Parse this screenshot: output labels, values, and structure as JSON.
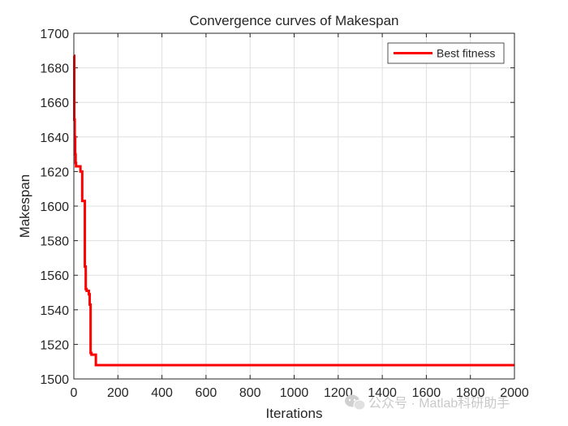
{
  "chart_data": {
    "type": "line",
    "title": "Convergence curves of Makespan",
    "xlabel": "Iterations",
    "ylabel": "Makespan",
    "xlim": [
      0,
      2000
    ],
    "ylim": [
      1500,
      1700
    ],
    "xticks": [
      0,
      200,
      400,
      600,
      800,
      1000,
      1200,
      1400,
      1600,
      1800,
      2000
    ],
    "yticks": [
      1500,
      1520,
      1540,
      1560,
      1580,
      1600,
      1620,
      1640,
      1660,
      1680,
      1700
    ],
    "grid": true,
    "legend_position": "top-right",
    "series": [
      {
        "name": "Best fitness",
        "color": "#ff0000",
        "step": true,
        "x": [
          1,
          2,
          4,
          6,
          8,
          10,
          14,
          18,
          30,
          38,
          42,
          50,
          54,
          58,
          62,
          68,
          72,
          76,
          80,
          86,
          100,
          106,
          2000
        ],
        "y": [
          1687,
          1650,
          1640,
          1630,
          1625,
          1623,
          1623,
          1623,
          1620,
          1603,
          1603,
          1565,
          1552,
          1551,
          1551,
          1549,
          1543,
          1515,
          1514,
          1514,
          1508,
          1508,
          1508
        ]
      }
    ]
  },
  "watermark": {
    "text": "公众号 · Matlab科研助手",
    "icon": "wechat-icon"
  }
}
